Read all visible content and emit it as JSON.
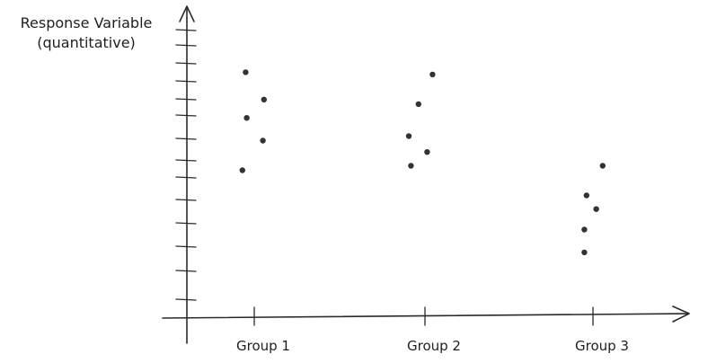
{
  "chart_data": {
    "type": "scatter",
    "ylabel_line1": "Response Variable",
    "ylabel_line2": "(quantitative)",
    "categories": [
      "Group 1",
      "Group 2",
      "Group 3"
    ],
    "ylim": [
      0,
      13
    ],
    "grid": false,
    "y_tick_count": 13,
    "points": [
      {
        "group": "Group 1",
        "jitter": -0.4,
        "y": 10.7
      },
      {
        "group": "Group 1",
        "jitter": 0.45,
        "y": 9.5
      },
      {
        "group": "Group 1",
        "jitter": -0.35,
        "y": 8.7
      },
      {
        "group": "Group 1",
        "jitter": 0.4,
        "y": 7.7
      },
      {
        "group": "Group 1",
        "jitter": -0.55,
        "y": 6.4
      },
      {
        "group": "Group 2",
        "jitter": 0.35,
        "y": 10.6
      },
      {
        "group": "Group 2",
        "jitter": -0.3,
        "y": 9.3
      },
      {
        "group": "Group 2",
        "jitter": -0.75,
        "y": 7.9
      },
      {
        "group": "Group 2",
        "jitter": 0.1,
        "y": 7.2
      },
      {
        "group": "Group 2",
        "jitter": -0.65,
        "y": 6.6
      },
      {
        "group": "Group 3",
        "jitter": 0.45,
        "y": 6.6
      },
      {
        "group": "Group 3",
        "jitter": -0.3,
        "y": 5.3
      },
      {
        "group": "Group 3",
        "jitter": 0.15,
        "y": 4.7
      },
      {
        "group": "Group 3",
        "jitter": -0.4,
        "y": 3.8
      },
      {
        "group": "Group 3",
        "jitter": -0.4,
        "y": 2.8
      }
    ]
  }
}
